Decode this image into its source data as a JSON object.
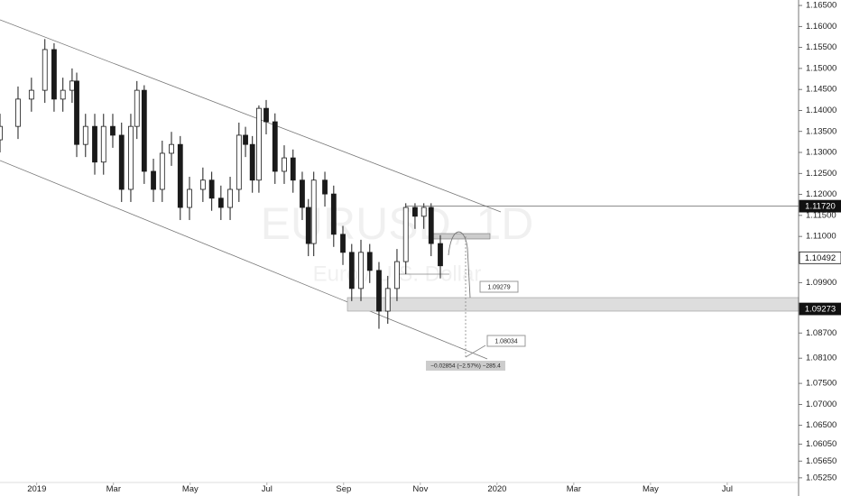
{
  "chart_data": {
    "type": "candlestick",
    "title": "EURUSD, 1D",
    "subtitle": "Euro / U.S. Dollar",
    "x": [
      -0.96,
      -0.49,
      -0.14,
      0.21,
      0.45,
      0.68,
      0.92,
      1.04,
      1.27,
      1.51,
      1.74,
      1.98,
      2.21,
      2.45,
      2.61,
      2.8,
      3.04,
      3.27,
      3.51,
      3.74,
      3.98,
      4.33,
      4.56,
      4.8,
      5.04,
      5.27,
      5.44,
      5.62,
      5.79,
      5.98,
      6.21,
      6.45,
      6.68,
      6.92,
      7.08,
      7.22,
      7.51,
      7.74,
      7.98,
      8.21,
      8.45,
      8.68,
      8.92,
      9.15,
      9.39,
      9.62,
      9.86,
      10.09,
      10.28,
      10.52
    ],
    "open": [
      1.133,
      1.1362,
      1.1427,
      1.1448,
      1.1545,
      1.1427,
      1.1448,
      1.147,
      1.1319,
      1.1362,
      1.1277,
      1.1362,
      1.1341,
      1.1212,
      1.1362,
      1.1448,
      1.1255,
      1.1212,
      1.1298,
      1.1319,
      1.1169,
      1.1212,
      1.1234,
      1.1191,
      1.1169,
      1.1212,
      1.1341,
      1.1319,
      1.1234,
      1.1405,
      1.1373,
      1.1255,
      1.1287,
      1.1234,
      1.1169,
      1.1083,
      1.1234,
      1.1201,
      1.1105,
      1.1062,
      1.0976,
      1.1062,
      1.1019,
      1.0922,
      1.0976,
      1.104,
      1.1169,
      1.1148,
      1.1169,
      1.1083
    ],
    "high": [
      1.1392,
      1.1457,
      1.1478,
      1.157,
      1.156,
      1.1478,
      1.15,
      1.149,
      1.1392,
      1.1392,
      1.1392,
      1.1392,
      1.1371,
      1.1392,
      1.147,
      1.146,
      1.1285,
      1.1328,
      1.1349,
      1.1339,
      1.1242,
      1.1264,
      1.1254,
      1.1221,
      1.1242,
      1.1371,
      1.1361,
      1.1339,
      1.1412,
      1.1425,
      1.1393,
      1.1317,
      1.1307,
      1.1254,
      1.1189,
      1.1254,
      1.1254,
      1.1221,
      1.1125,
      1.1082,
      1.1092,
      1.1082,
      1.1039,
      1.1006,
      1.107,
      1.1179,
      1.1179,
      1.1179,
      1.1179,
      1.1103
    ],
    "low": [
      1.13,
      1.1332,
      1.1397,
      1.1418,
      1.1397,
      1.1397,
      1.1418,
      1.1289,
      1.1289,
      1.1247,
      1.1247,
      1.1311,
      1.1182,
      1.1182,
      1.1332,
      1.1225,
      1.1182,
      1.1182,
      1.1268,
      1.1139,
      1.1139,
      1.1182,
      1.1161,
      1.1139,
      1.1139,
      1.1182,
      1.1289,
      1.1204,
      1.1204,
      1.1343,
      1.1225,
      1.1225,
      1.1204,
      1.1139,
      1.1053,
      1.1053,
      1.1171,
      1.1075,
      1.1032,
      1.0946,
      1.0946,
      1.0989,
      1.088,
      1.0892,
      1.0946,
      1.101,
      1.1118,
      1.1118,
      1.1053,
      1.1
    ],
    "close": [
      1.1362,
      1.1427,
      1.1448,
      1.1545,
      1.1427,
      1.1448,
      1.147,
      1.1319,
      1.1362,
      1.1277,
      1.1362,
      1.1341,
      1.1212,
      1.1362,
      1.1448,
      1.1255,
      1.1212,
      1.1298,
      1.1319,
      1.1169,
      1.1212,
      1.1234,
      1.1191,
      1.1169,
      1.1212,
      1.1341,
      1.1319,
      1.1234,
      1.1405,
      1.1373,
      1.1255,
      1.1287,
      1.1234,
      1.1169,
      1.1083,
      1.1234,
      1.1201,
      1.1105,
      1.1062,
      1.0976,
      1.1062,
      1.1019,
      1.0922,
      1.0976,
      1.104,
      1.1169,
      1.1148,
      1.1169,
      1.1083,
      1.103
    ],
    "up_color": "#ffffff",
    "down_color": "#1a1a1a",
    "wick_color": "#1a1a1a",
    "xlim": [
      -0.96,
      19.86
    ],
    "xticks": [
      {
        "value": 0,
        "label": "2019"
      },
      {
        "value": 2,
        "label": "Mar"
      },
      {
        "value": 4,
        "label": "May"
      },
      {
        "value": 6,
        "label": "Jul"
      },
      {
        "value": 8,
        "label": "Sep"
      },
      {
        "value": 10,
        "label": "Nov"
      },
      {
        "value": 12,
        "label": "2020"
      },
      {
        "value": 14,
        "label": "Mar"
      },
      {
        "value": 16,
        "label": "May"
      },
      {
        "value": 18,
        "label": "Jul"
      }
    ],
    "ylim": [
      1.0514,
      1.1663
    ],
    "yticks": [
      {
        "value": 1.165,
        "label": "1.16500"
      },
      {
        "value": 1.16,
        "label": "1.16000"
      },
      {
        "value": 1.155,
        "label": "1.15500"
      },
      {
        "value": 1.15,
        "label": "1.15000"
      },
      {
        "value": 1.145,
        "label": "1.14500"
      },
      {
        "value": 1.14,
        "label": "1.14000"
      },
      {
        "value": 1.135,
        "label": "1.13500"
      },
      {
        "value": 1.13,
        "label": "1.13000"
      },
      {
        "value": 1.125,
        "label": "1.12500"
      },
      {
        "value": 1.12,
        "label": "1.12000"
      },
      {
        "value": 1.115,
        "label": "1.11500"
      },
      {
        "value": 1.11,
        "label": "1.11000"
      },
      {
        "value": 1.099,
        "label": "1.09900"
      },
      {
        "value": 1.087,
        "label": "1.08700"
      },
      {
        "value": 1.081,
        "label": "1.08100"
      },
      {
        "value": 1.075,
        "label": "1.07500"
      },
      {
        "value": 1.07,
        "label": "1.07000"
      },
      {
        "value": 1.065,
        "label": "1.06500"
      },
      {
        "value": 1.0605,
        "label": "1.06050"
      },
      {
        "value": 1.0565,
        "label": "1.05650"
      },
      {
        "value": 1.0525,
        "label": "1.05250"
      }
    ],
    "price_lines": [
      {
        "value": 1.1172,
        "label": "1.11720",
        "style": "dark"
      },
      {
        "value": 1.10492,
        "label": "1.10492",
        "style": "light"
      },
      {
        "value": 1.09273,
        "label": "1.09273",
        "style": "dark"
      }
    ],
    "annotations": {
      "target_high": "1.09279",
      "target_low": "1.08034",
      "measure": "−0.02854 (−2.57%) −285.4"
    }
  }
}
